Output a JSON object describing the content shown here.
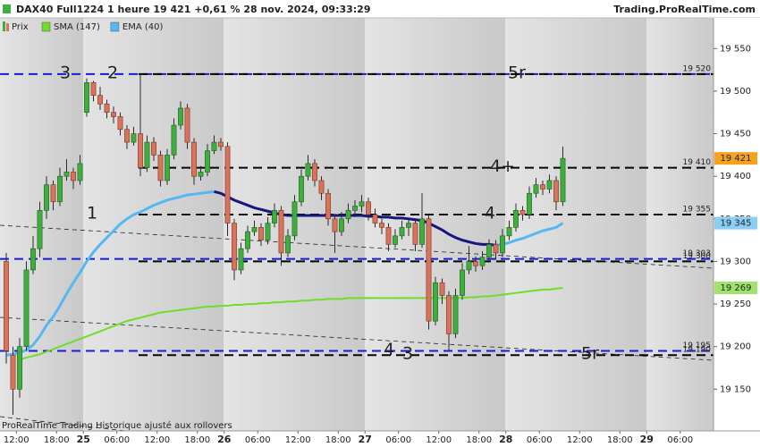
{
  "chart_data": {
    "type": "candlestick",
    "title": "DAX40 Full1224 1 heure 19 421 +0,61 % 28 nov. 2024, 09:33:29",
    "source": "Trading.ProRealTime.com",
    "footer": "ProRealTime Trading  Historique ajusté aux rollovers",
    "price_name": "Prix",
    "up_color": "#3fae3f",
    "down_color": "#d8735c",
    "close_label": "19 421",
    "close_tag_color": "#f6a21c",
    "categories": [
      null,
      null,
      "12:00",
      null,
      null,
      null,
      null,
      null,
      "18:00",
      null,
      null,
      null,
      "25",
      null,
      null,
      null,
      null,
      "06:00",
      null,
      null,
      null,
      null,
      null,
      "12:00",
      null,
      null,
      null,
      null,
      null,
      "18:00",
      null,
      null,
      null,
      "26",
      null,
      null,
      null,
      null,
      "06:00",
      null,
      null,
      null,
      null,
      null,
      "12:00",
      null,
      null,
      null,
      null,
      null,
      "18:00",
      null,
      null,
      null,
      "27",
      null,
      null,
      null,
      null,
      "06:00",
      null,
      null,
      null,
      null,
      null,
      "12:00",
      null,
      null,
      null,
      null,
      null,
      "18:00",
      null,
      null,
      null,
      "28",
      null,
      null,
      null,
      null,
      "06:00",
      null,
      null,
      null,
      null,
      null,
      "12:00",
      null,
      null,
      null,
      null,
      null,
      "18:00",
      null,
      null,
      null,
      "29",
      null,
      null,
      null,
      null,
      "06:00",
      null,
      null,
      null,
      null
    ],
    "open": [
      19300,
      19190,
      19150,
      19200,
      19290,
      19315,
      19360,
      19390,
      19370,
      19400,
      19405,
      19395,
      19475,
      19510,
      19495,
      19485,
      19475,
      19470,
      19455,
      19440,
      19450,
      19410,
      19440,
      19425,
      19395,
      19425,
      19460,
      19480,
      19440,
      19400,
      19405,
      19430,
      19440,
      19435,
      19345,
      19290,
      19315,
      19335,
      19340,
      19325,
      19345,
      19360,
      19310,
      19330,
      19370,
      19400,
      19415,
      19395,
      19380,
      19350,
      19335,
      19350,
      19360,
      19365,
      19370,
      19355,
      19345,
      19340,
      19320,
      19330,
      19340,
      19345,
      19320,
      19350,
      19230,
      19275,
      19260,
      19215,
      19260,
      19290,
      19300,
      19295,
      19305,
      19320,
      19310,
      19330,
      19340,
      19360,
      19355,
      19380,
      19390,
      19385,
      19395,
      19370,
      null,
      null,
      null,
      null,
      null,
      null,
      null,
      null,
      null,
      null,
      null,
      null,
      null,
      null,
      null,
      null,
      null,
      null,
      null,
      null,
      null,
      null
    ],
    "high": [
      19310,
      19200,
      19210,
      19300,
      19330,
      19370,
      19400,
      19395,
      19410,
      19420,
      19410,
      19425,
      19515,
      19512,
      19505,
      19490,
      19482,
      19475,
      19460,
      19458,
      19520,
      19448,
      19446,
      19430,
      19432,
      19468,
      19488,
      19485,
      19445,
      19412,
      19438,
      19448,
      19445,
      19440,
      19350,
      19322,
      19342,
      19348,
      19345,
      19352,
      19368,
      19365,
      19338,
      19378,
      19408,
      19425,
      19420,
      19400,
      19385,
      19356,
      19358,
      19368,
      19372,
      19378,
      19375,
      19362,
      19350,
      19345,
      19338,
      19348,
      19350,
      19350,
      19380,
      19355,
      19282,
      19280,
      19265,
      19268,
      19298,
      19318,
      19306,
      19312,
      19326,
      19325,
      19338,
      19348,
      19368,
      19365,
      19388,
      19398,
      19395,
      19402,
      19400,
      19435,
      null,
      null,
      null,
      null,
      null,
      null,
      null,
      null,
      null,
      null,
      null,
      null,
      null,
      null,
      null,
      null,
      null,
      null,
      null,
      null,
      null,
      null
    ],
    "low": [
      19180,
      19120,
      19140,
      19195,
      19285,
      19305,
      19350,
      19360,
      19365,
      19395,
      19385,
      19390,
      19470,
      19488,
      19478,
      19468,
      19462,
      19448,
      19432,
      19436,
      19400,
      19405,
      19418,
      19388,
      19390,
      19420,
      19455,
      19432,
      19390,
      19395,
      19400,
      19426,
      19430,
      19330,
      19278,
      19285,
      19310,
      19330,
      19318,
      19320,
      19340,
      19295,
      19305,
      19325,
      19365,
      19395,
      19388,
      19372,
      19342,
      19310,
      19330,
      19345,
      19352,
      19358,
      19348,
      19340,
      19332,
      19312,
      19316,
      19326,
      19330,
      19312,
      19316,
      19220,
      19225,
      19250,
      19195,
      19210,
      19255,
      19285,
      19288,
      19290,
      19300,
      19302,
      19305,
      19325,
      19335,
      19348,
      19350,
      19375,
      19378,
      19380,
      19360,
      19365,
      null,
      null,
      null,
      null,
      null,
      null,
      null,
      null,
      null,
      null,
      null,
      null,
      null,
      null,
      null,
      null,
      null,
      null,
      null,
      null,
      null,
      null
    ],
    "close": [
      19195,
      19150,
      19200,
      19290,
      19315,
      19360,
      19390,
      19370,
      19400,
      19405,
      19395,
      19415,
      19510,
      19495,
      19485,
      19475,
      19470,
      19455,
      19440,
      19450,
      19410,
      19440,
      19425,
      19395,
      19425,
      19460,
      19480,
      19440,
      19400,
      19405,
      19430,
      19440,
      19435,
      19345,
      19290,
      19315,
      19335,
      19340,
      19325,
      19345,
      19360,
      19310,
      19330,
      19370,
      19400,
      19415,
      19395,
      19380,
      19350,
      19335,
      19350,
      19360,
      19365,
      19370,
      19355,
      19345,
      19340,
      19320,
      19330,
      19340,
      19345,
      19320,
      19350,
      19230,
      19275,
      19260,
      19215,
      19260,
      19290,
      19300,
      19295,
      19305,
      19320,
      19310,
      19330,
      19340,
      19360,
      19355,
      19380,
      19390,
      19385,
      19395,
      19370,
      19421,
      null,
      null,
      null,
      null,
      null,
      null,
      null,
      null,
      null,
      null,
      null,
      null,
      null,
      null,
      null,
      null,
      null,
      null,
      null,
      null,
      null,
      null
    ],
    "series": [
      {
        "name": "SMA (147)",
        "color": "#6ede2a",
        "tag_color": "#9fe36a",
        "last_label": "19 269",
        "values": [
          null,
          null,
          19185,
          19187,
          19189,
          19191,
          19194,
          19197,
          19200,
          19203,
          19206,
          19209,
          19212,
          19215,
          19218,
          19221,
          19224,
          19227,
          19230,
          19232,
          19234,
          19236,
          19238,
          19240,
          19241,
          19242,
          19243,
          19244,
          19245,
          19246,
          19247,
          19247,
          19248,
          19248,
          19249,
          19249,
          19250,
          19250,
          19251,
          19251,
          19252,
          19252,
          19253,
          19253,
          19254,
          19254,
          19255,
          19255,
          19256,
          19256,
          19256,
          19257,
          19257,
          19257,
          19257,
          19257,
          19257,
          19257,
          19257,
          19257,
          19257,
          19257,
          19257,
          19257,
          19257,
          19257,
          19257,
          19257,
          19257,
          19258,
          19258,
          19259,
          19259,
          19260,
          19261,
          19262,
          19263,
          19264,
          19265,
          19266,
          19267,
          19267,
          19268,
          19269,
          null,
          null,
          null,
          null,
          null,
          null,
          null,
          null,
          null,
          null,
          null,
          null,
          null,
          null,
          null,
          null,
          null,
          null,
          null,
          null,
          null,
          null
        ]
      },
      {
        "name": "EMA (40)",
        "color": "#55b8f2",
        "color_down": "#16167e",
        "tag_color": "#8ccdf4",
        "last_label": "19 345",
        "values": [
          19190,
          19191,
          19193,
          19196,
          19202,
          19212,
          19225,
          19235,
          19248,
          19262,
          19275,
          19287,
          19300,
          19311,
          19320,
          19328,
          19336,
          19344,
          19350,
          19355,
          19358,
          19362,
          19366,
          19369,
          19372,
          19374,
          19376,
          19378,
          19379,
          19380,
          19381,
          19382,
          19380,
          19376,
          19372,
          19369,
          19366,
          19363,
          19361,
          19359,
          19357,
          19355,
          19354,
          19354,
          19354,
          19354,
          19354,
          19354,
          19354,
          19354,
          19354,
          19354,
          19354,
          19354,
          19353,
          19353,
          19352,
          19352,
          19351,
          19351,
          19350,
          19349,
          19348,
          19345,
          19341,
          19337,
          19332,
          19328,
          19325,
          19323,
          19321,
          19320,
          19320,
          19319,
          19320,
          19322,
          19325,
          19327,
          19330,
          19333,
          19336,
          19338,
          19340,
          19345,
          null,
          null,
          null,
          null,
          null,
          null,
          null,
          null,
          null,
          null,
          null,
          null,
          null,
          null,
          null,
          null,
          null,
          null,
          null,
          null,
          null,
          null
        ]
      }
    ],
    "levels": [
      {
        "value": 19520,
        "label": "19 520",
        "color": "#1a1ad8",
        "marks": [
          "3",
          "5r"
        ]
      },
      {
        "value": 19520,
        "color": "#000000",
        "marks": [
          "2"
        ]
      },
      {
        "value": 19410,
        "label": "19 410",
        "color": "#000000",
        "marks": [
          "4+"
        ]
      },
      {
        "value": 19355,
        "label": "19 355",
        "color": "#000000",
        "marks": [
          "1",
          "4"
        ]
      },
      {
        "value": 19303,
        "label": "19 303",
        "color": "#1a1ad8"
      },
      {
        "value": 19300,
        "label": "19 300",
        "color": "#000000"
      },
      {
        "value": 19195,
        "label": "19 195",
        "color": "#1a1ad8",
        "marks": [
          "4"
        ]
      },
      {
        "value": 19190,
        "label": "19 190",
        "color": "#000000",
        "marks": [
          "3",
          "5r"
        ]
      }
    ],
    "ylim": [
      19101,
      19586
    ],
    "yticks": [
      {
        "value": 19150,
        "label": "19 150"
      },
      {
        "value": 19200,
        "label": "19 200"
      },
      {
        "value": 19250,
        "label": "19 250"
      },
      {
        "value": 19300,
        "label": "19 300"
      },
      {
        "value": 19350,
        "label": "19 350"
      },
      {
        "value": 19400,
        "label": "19 400"
      },
      {
        "value": 19450,
        "label": "19 450"
      },
      {
        "value": 19500,
        "label": "19 500"
      },
      {
        "value": 19550,
        "label": "19 550"
      }
    ]
  }
}
